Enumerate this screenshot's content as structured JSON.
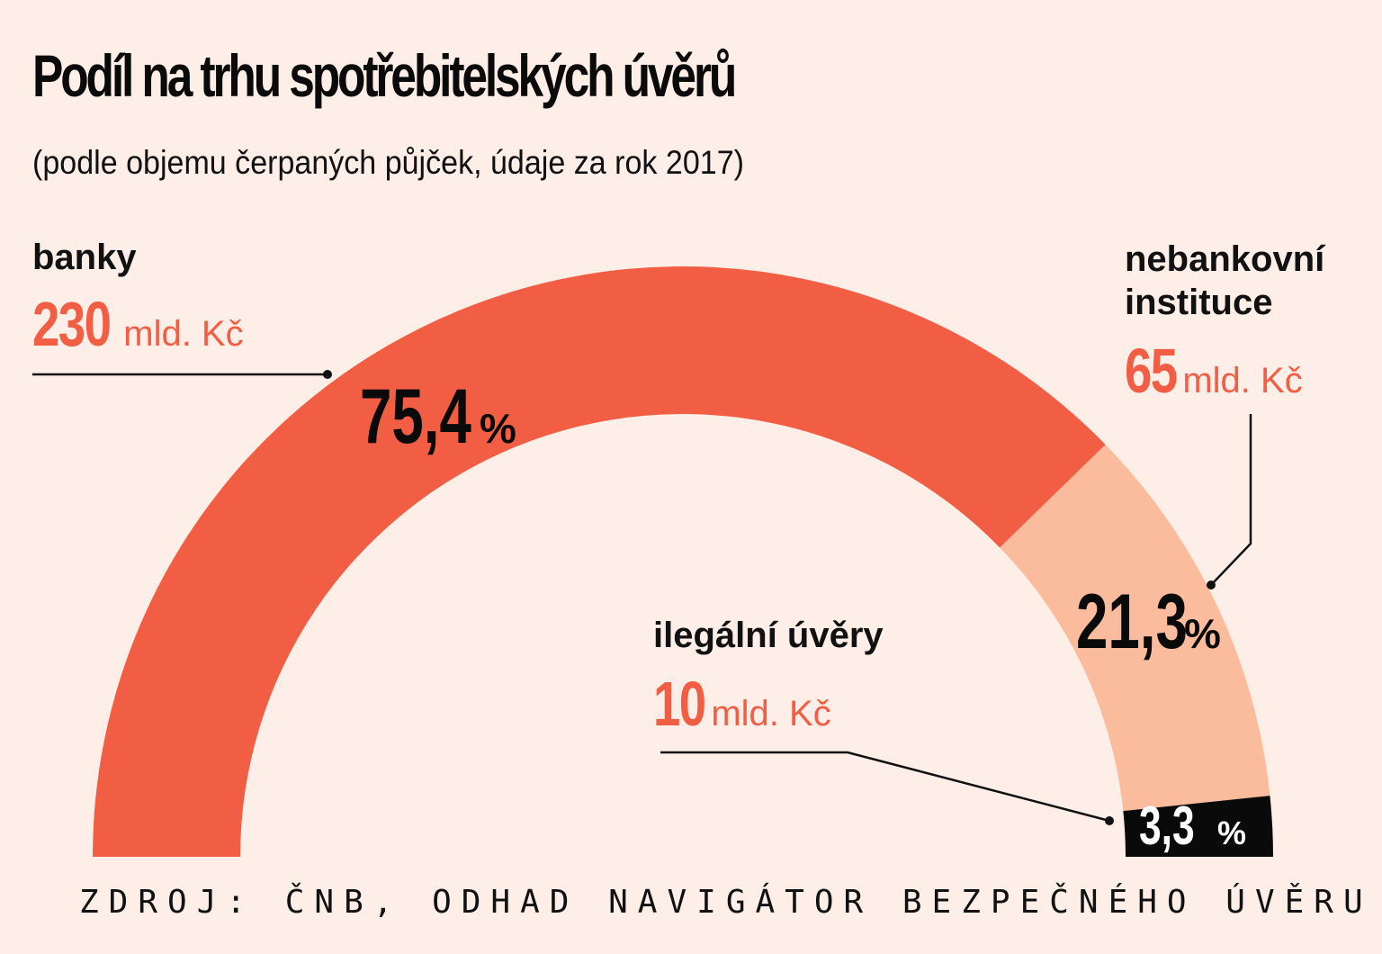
{
  "chart_data": {
    "type": "pie",
    "title": "Podíl na trhu spotřebitelských úvěrů",
    "subtitle": "(podle objemu čerpaných půjček, údaje za rok 2017)",
    "slices": [
      {
        "name": "banky",
        "amount": "230",
        "unit": "mld. Kč",
        "value": 75.4,
        "value_label": "75,4",
        "pct_sign": "%",
        "color": "#f25e44"
      },
      {
        "name": "nebankovní instituce",
        "name_lines": [
          "nebankovní",
          "instituce"
        ],
        "amount": "65",
        "unit": "mld. Kč",
        "value": 21.3,
        "value_label": "21,3",
        "pct_sign": "%",
        "color": "#fbbc9e"
      },
      {
        "name": "ilegální úvěry",
        "amount": "10",
        "unit": "mld. Kč",
        "value": 3.3,
        "value_label": "3,3",
        "pct_sign": "%",
        "color": "#0a0a0a"
      }
    ],
    "shape": "semicircle-donut",
    "source": "ZDROJ: ČNB, ODHAD NAVIGÁTOR BEZPEČNÉHO ÚVĚRU"
  }
}
